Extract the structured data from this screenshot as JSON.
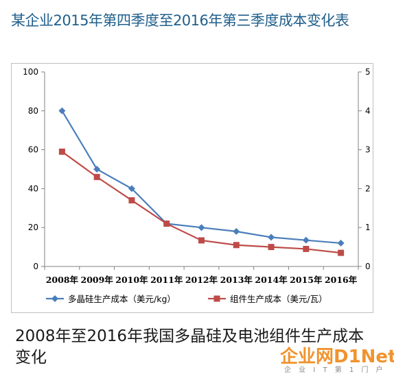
{
  "page_title": "某企业2015年第四季度至2016年第三季度成本变化表",
  "caption": "2008年至2016年我国多晶硅及电池组件生产成本变化",
  "watermark": {
    "logo": "企业网D1Net",
    "sub": "企 业 I T 第 1 门 户"
  },
  "chart_data": {
    "type": "line",
    "categories": [
      "2008年",
      "2009年",
      "2010年",
      "2011年",
      "2012年",
      "2013年",
      "2014年",
      "2015年",
      "2016年"
    ],
    "y_left": {
      "min": 0,
      "max": 100,
      "ticks": [
        0,
        20,
        40,
        60,
        80,
        100
      ]
    },
    "y_right": {
      "min": 0,
      "max": 5,
      "ticks": [
        0,
        1,
        2,
        3,
        4,
        5
      ]
    },
    "grid": false,
    "legend_position": "bottom",
    "series": [
      {
        "name": "多晶硅生产成本（美元/kg）",
        "axis": "left",
        "marker": "diamond",
        "color": "#4a7ebb",
        "values": [
          80,
          50,
          40,
          22,
          20,
          18,
          15,
          13.5,
          12
        ]
      },
      {
        "name": "组件生产成本（美元/瓦）",
        "axis": "right",
        "marker": "square",
        "color": "#be4b48",
        "values": [
          2.95,
          2.3,
          1.7,
          1.1,
          0.67,
          0.55,
          0.5,
          0.45,
          0.35
        ]
      }
    ]
  }
}
